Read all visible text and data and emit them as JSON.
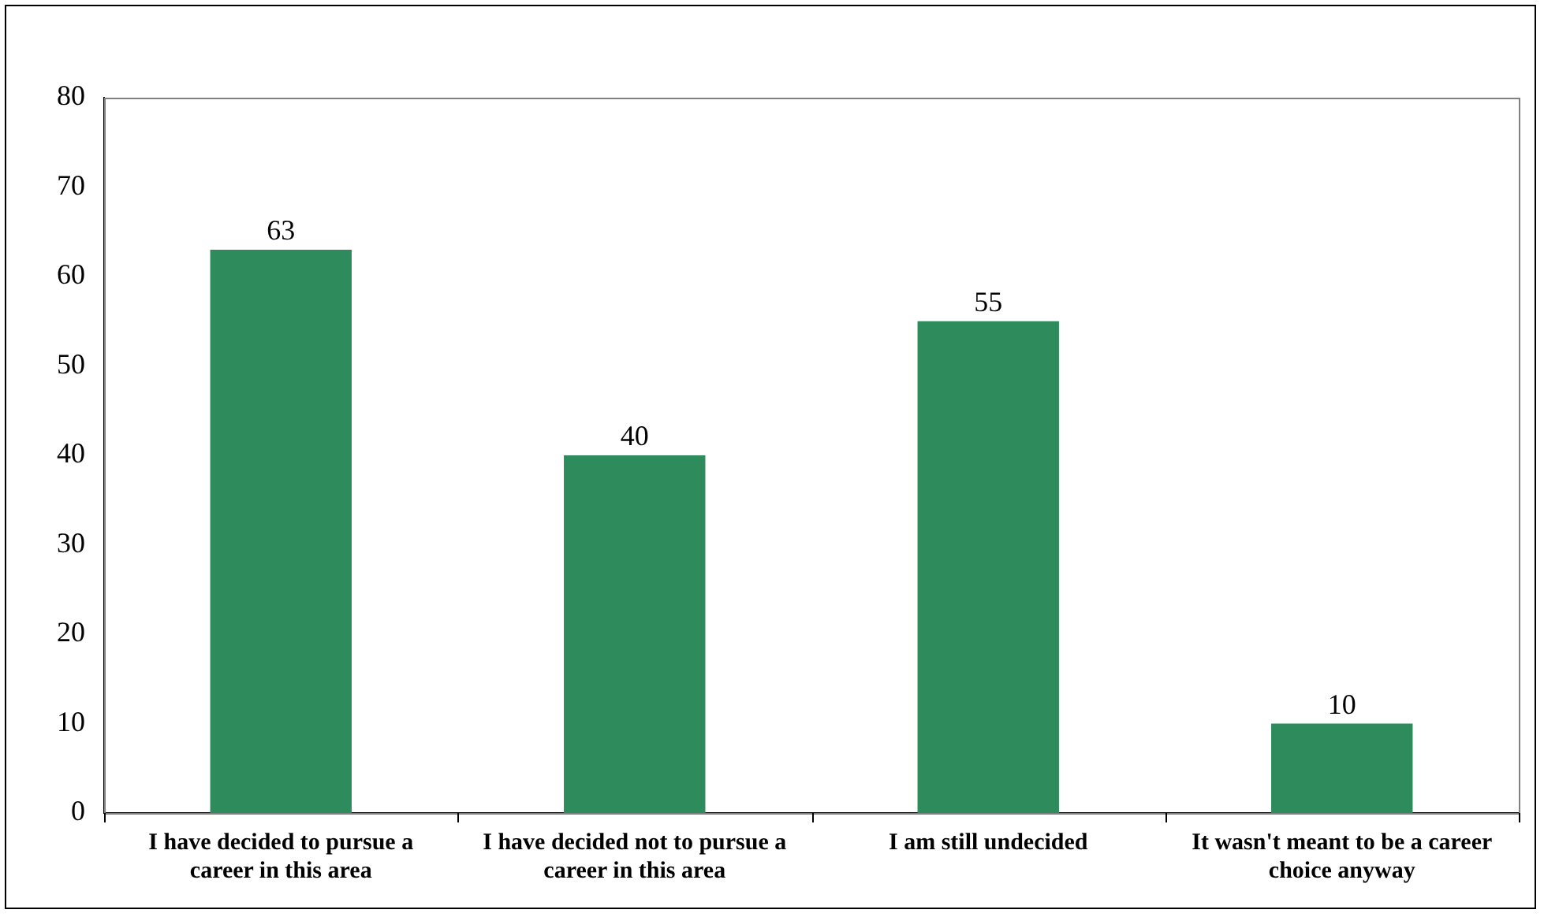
{
  "chart_data": {
    "type": "bar",
    "categories": [
      "I have decided to pursue a career in this area",
      "I have decided not to pursue a career in this area",
      "I am still undecided",
      "It wasn't meant to be a career choice anyway"
    ],
    "values": [
      63,
      40,
      55,
      10
    ],
    "color": "#2e8b5c",
    "ylim": [
      0,
      80
    ],
    "yticks": [
      0,
      10,
      20,
      30,
      40,
      50,
      60,
      70,
      80
    ],
    "grid": false,
    "legend": false,
    "data_labels": true
  }
}
